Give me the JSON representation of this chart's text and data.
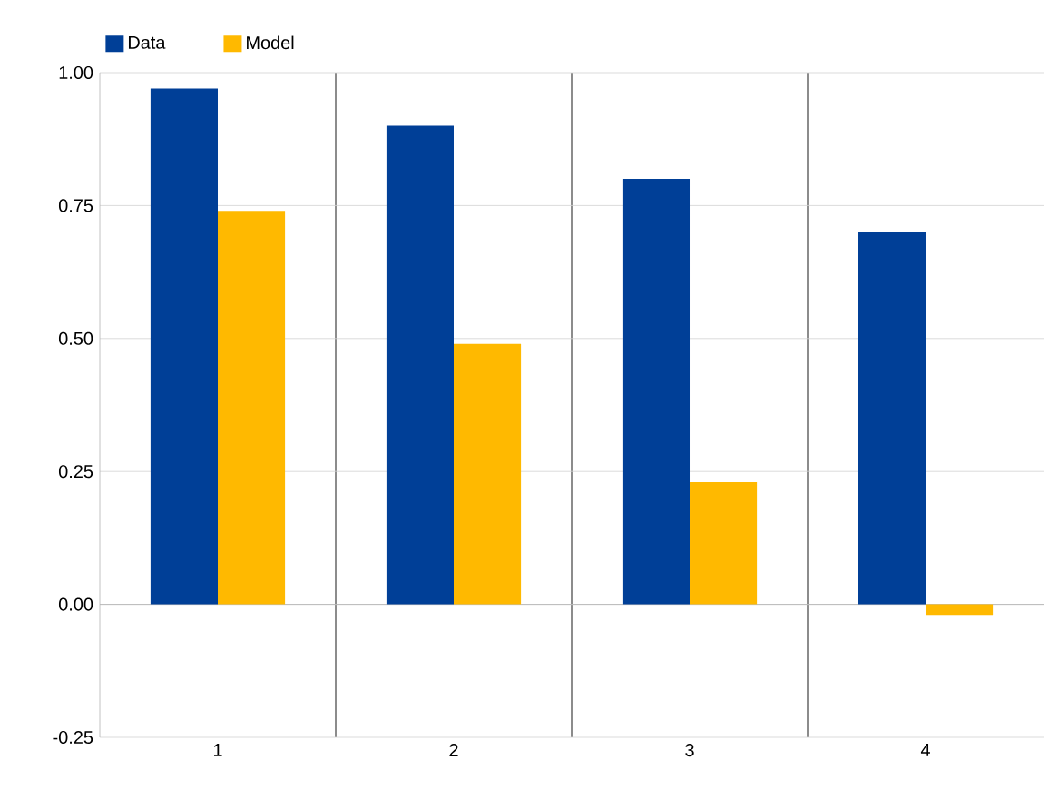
{
  "chart_data": {
    "type": "bar",
    "categories": [
      "1",
      "2",
      "3",
      "4"
    ],
    "series": [
      {
        "name": "Data",
        "color": "#003f97",
        "values": [
          0.97,
          0.9,
          0.8,
          0.7
        ]
      },
      {
        "name": "Model",
        "color": "#ffb900",
        "values": [
          0.74,
          0.49,
          0.23,
          -0.02
        ]
      }
    ],
    "ylim": [
      -0.25,
      1.0
    ],
    "yticks": [
      {
        "value": -0.25,
        "label": "-0.25"
      },
      {
        "value": 0,
        "label": "0.00"
      },
      {
        "value": 0.25,
        "label": "0.25"
      },
      {
        "value": 0.5,
        "label": "0.50"
      },
      {
        "value": 0.75,
        "label": "0.75"
      },
      {
        "value": 1.0,
        "label": "1.00"
      }
    ],
    "grid": true,
    "legend": "top left"
  }
}
